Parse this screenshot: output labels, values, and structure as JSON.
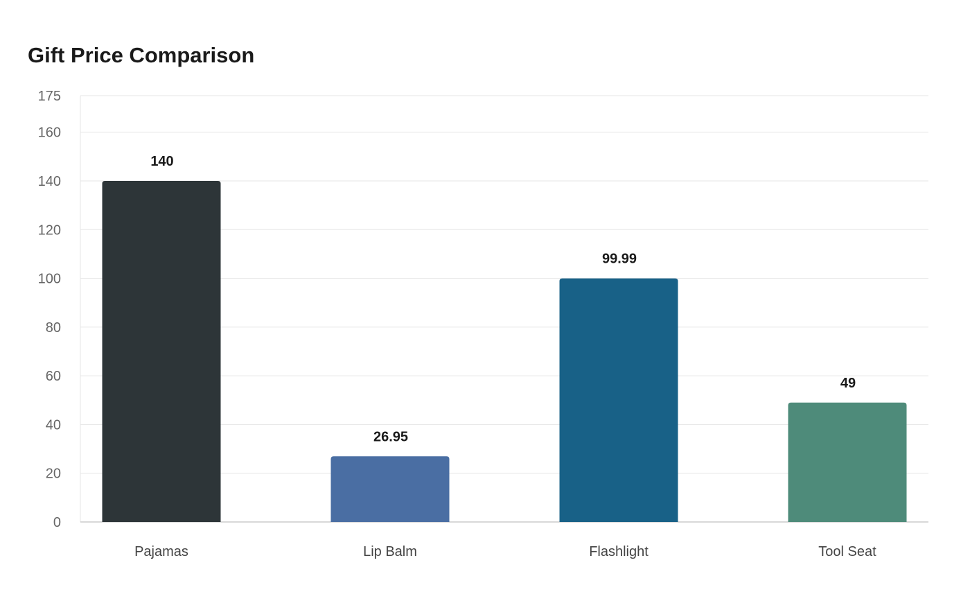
{
  "chart_data": {
    "type": "bar",
    "title": "Gift Price Comparison",
    "categories": [
      "Pajamas",
      "Lip Balm",
      "Flashlight",
      "Tool Seat"
    ],
    "values": [
      140,
      26.95,
      99.99,
      49
    ],
    "value_labels": [
      "140",
      "26.95",
      "99.99",
      "49"
    ],
    "colors": [
      "#2d3538",
      "#4a6ea3",
      "#186187",
      "#4e8b7a"
    ],
    "y_ticks": [
      0,
      20,
      40,
      60,
      80,
      100,
      120,
      140,
      160,
      175
    ],
    "ylim": [
      0,
      175
    ],
    "xlabel": "",
    "ylabel": "",
    "grid": true,
    "legend": "none"
  }
}
